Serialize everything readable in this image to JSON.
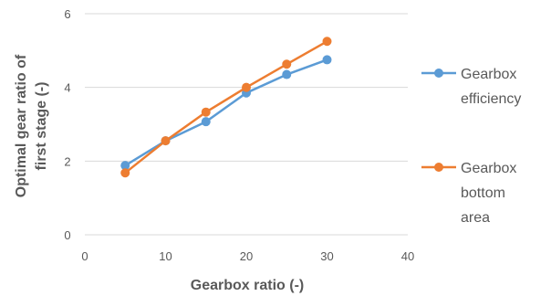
{
  "chart_data": {
    "type": "line",
    "title": "",
    "xlabel": "Gearbox ratio (-)",
    "ylabel_lines": [
      "Optimal gear ratio of",
      "first stage (-)"
    ],
    "xlim": [
      0,
      40
    ],
    "ylim": [
      0,
      6
    ],
    "x_ticks": [
      0,
      10,
      20,
      30,
      40
    ],
    "y_ticks": [
      0,
      2,
      4,
      6
    ],
    "grid": "horizontal",
    "legend_position": "right",
    "series": [
      {
        "name_lines": [
          "Gearbox",
          "efficiency"
        ],
        "color": "#5B9BD5",
        "x": [
          5,
          10,
          15,
          20,
          25,
          30
        ],
        "y": [
          1.88,
          2.55,
          3.07,
          3.85,
          4.35,
          4.75
        ]
      },
      {
        "name_lines": [
          "Gearbox",
          "bottom",
          "area"
        ],
        "color": "#ED7D31",
        "x": [
          5,
          10,
          15,
          20,
          25,
          30
        ],
        "y": [
          1.68,
          2.55,
          3.33,
          4.0,
          4.63,
          5.25
        ]
      }
    ]
  }
}
